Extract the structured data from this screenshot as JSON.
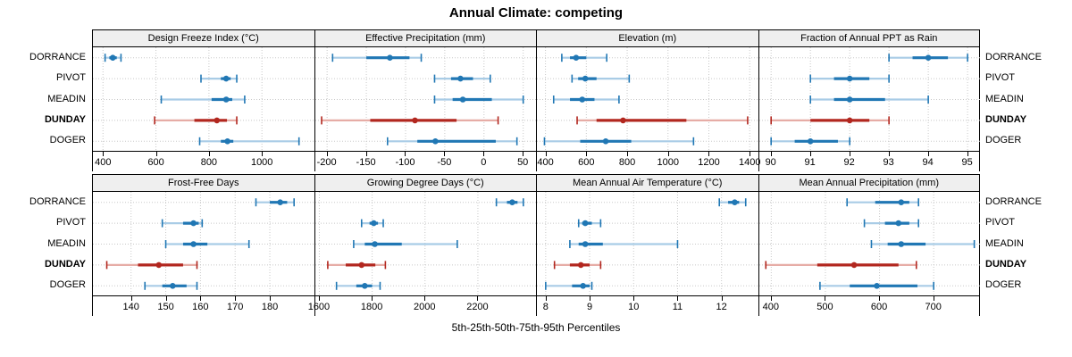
{
  "title": "Annual Climate: competing",
  "xlabel": "5th-25th-50th-75th-95th Percentiles",
  "chart_data": {
    "type": "scatter",
    "variant": "trellis percentile dot-whisker plot (5th-25th-50th-75th-95th)",
    "locations": [
      "DORRANCE",
      "PIVOT",
      "MEADIN",
      "DUNDAY",
      "DOGER"
    ],
    "highlight_location": "DUNDAY",
    "colors": {
      "series": "#2077b4",
      "series_light": "#a9cce6",
      "highlight": "#b2271f",
      "highlight_light": "#e6aca6",
      "grid": "#c8c8c8",
      "header_bg": "#efefef",
      "border": "#000000"
    },
    "panel_rows": [
      [
        {
          "title": "Design Freeze Index (°C)",
          "xlim": [
            362,
            1200
          ],
          "ticks": [
            400,
            600,
            800,
            1000
          ],
          "tick_labels": [
            "400",
            "600",
            "800",
            "1000"
          ],
          "values": [
            [
              408,
              424,
              437,
              452,
              468
            ],
            [
              770,
              845,
              865,
              882,
              905
            ],
            [
              620,
              810,
              865,
              888,
              935
            ],
            [
              595,
              745,
              830,
              868,
              905
            ],
            [
              765,
              845,
              870,
              892,
              1140
            ]
          ]
        },
        {
          "title": "Effective Precipitation (mm)",
          "xlim": [
            -215,
            68
          ],
          "ticks": [
            -200,
            -150,
            -100,
            -50,
            0,
            50
          ],
          "tick_labels": [
            "-200",
            "-150",
            "-100",
            "-50",
            "0",
            "50"
          ],
          "values": [
            [
              -193,
              -150,
              -120,
              -95,
              -80
            ],
            [
              -63,
              -42,
              -30,
              -14,
              8
            ],
            [
              -63,
              -40,
              -27,
              10,
              50
            ],
            [
              -207,
              -145,
              -88,
              -35,
              18
            ],
            [
              -123,
              -85,
              -62,
              15,
              42
            ]
          ]
        },
        {
          "title": "Elevation (m)",
          "xlim": [
            358,
            1445
          ],
          "ticks": [
            400,
            600,
            800,
            1000,
            1200,
            1400
          ],
          "tick_labels": [
            "400",
            "600",
            "800",
            "1000",
            "1200",
            "1400"
          ],
          "values": [
            [
              480,
              520,
              550,
              600,
              700
            ],
            [
              530,
              560,
              595,
              650,
              810
            ],
            [
              440,
              520,
              580,
              640,
              760
            ],
            [
              555,
              650,
              780,
              1090,
              1390
            ],
            [
              395,
              570,
              695,
              820,
              1125
            ]
          ]
        },
        {
          "title": "Fraction of Annual PPT as Rain",
          "xlim": [
            89.7,
            95.35
          ],
          "ticks": [
            90,
            91,
            92,
            93,
            94,
            95
          ],
          "tick_labels": [
            "90",
            "91",
            "92",
            "93",
            "94",
            "95"
          ],
          "values": [
            [
              93,
              93.6,
              94,
              94.5,
              95
            ],
            [
              91,
              91.6,
              92,
              92.5,
              93
            ],
            [
              91,
              91.6,
              92,
              92.9,
              94
            ],
            [
              90,
              91,
              92,
              92.5,
              93
            ],
            [
              90,
              90.6,
              91,
              91.7,
              92
            ]
          ]
        }
      ],
      [
        {
          "title": "Frost-Free Days",
          "xlim": [
            129,
            193
          ],
          "ticks": [
            140,
            150,
            160,
            170,
            180
          ],
          "tick_labels": [
            "140",
            "150",
            "160",
            "170",
            "180"
          ],
          "values": [
            [
              176,
              180,
              183,
              185,
              187
            ],
            [
              149,
              155,
              158,
              159.5,
              160.5
            ],
            [
              150,
              155,
              158,
              162,
              174
            ],
            [
              133,
              142,
              148,
              155,
              159
            ],
            [
              144,
              149,
              152,
              156,
              159
            ]
          ]
        },
        {
          "title": "Growing Degree Days (°C)",
          "xlim": [
            1585,
            2425
          ],
          "ticks": [
            1600,
            1800,
            2000,
            2200
          ],
          "tick_labels": [
            "1600",
            "1800",
            "2000",
            "2200"
          ],
          "values": [
            [
              2270,
              2310,
              2330,
              2350,
              2372
            ],
            [
              1760,
              1790,
              1806,
              1822,
              1842
            ],
            [
              1730,
              1772,
              1810,
              1912,
              2122
            ],
            [
              1632,
              1700,
              1760,
              1812,
              1850
            ],
            [
              1665,
              1740,
              1772,
              1800,
              1830
            ]
          ]
        },
        {
          "title": "Mean Annual Air Temperature (°C)",
          "xlim": [
            7.8,
            12.85
          ],
          "ticks": [
            8,
            9,
            10,
            11,
            12
          ],
          "tick_labels": [
            "8",
            "9",
            "10",
            "11",
            "12"
          ],
          "values": [
            [
              11.95,
              12.15,
              12.3,
              12.4,
              12.55
            ],
            [
              8.75,
              8.83,
              8.9,
              9.05,
              9.25
            ],
            [
              8.55,
              8.75,
              8.9,
              9.3,
              11.0
            ],
            [
              8.2,
              8.55,
              8.8,
              9.0,
              9.25
            ],
            [
              8.0,
              8.6,
              8.85,
              9.0,
              9.05
            ]
          ]
        },
        {
          "title": "Mean Annual Precipitation (mm)",
          "xlim": [
            378,
            788
          ],
          "ticks": [
            400,
            500,
            600,
            700
          ],
          "tick_labels": [
            "400",
            "500",
            "600",
            "700"
          ],
          "values": [
            [
              540,
              592,
              640,
              655,
              672
            ],
            [
              572,
              610,
              635,
              655,
              672
            ],
            [
              585,
              615,
              640,
              685,
              775
            ],
            [
              390,
              485,
              553,
              635,
              668
            ],
            [
              490,
              545,
              595,
              670,
              700
            ]
          ]
        }
      ]
    ]
  }
}
